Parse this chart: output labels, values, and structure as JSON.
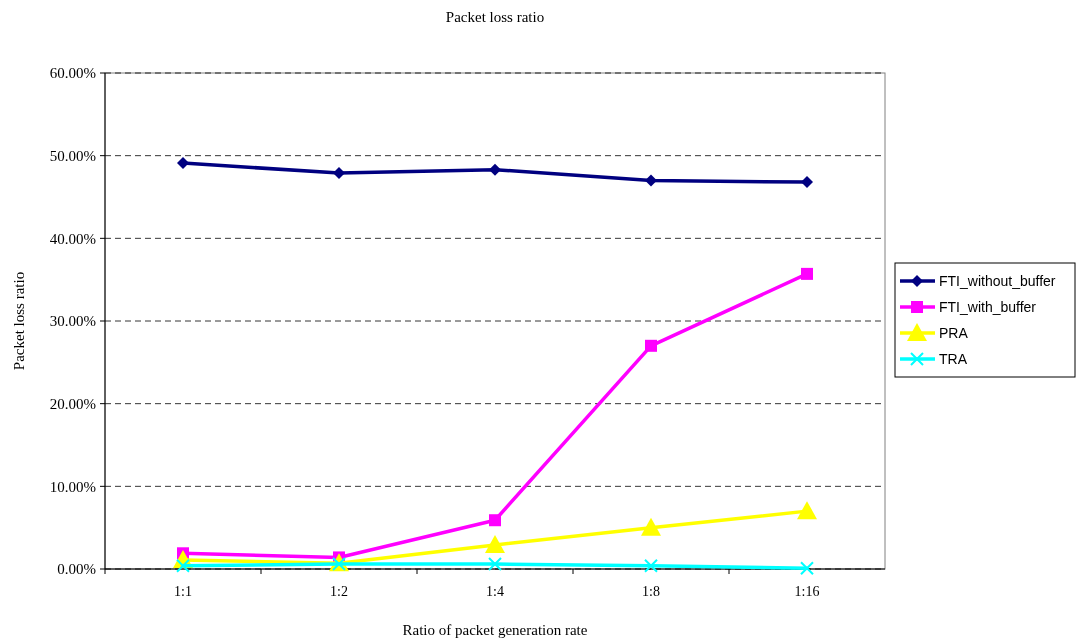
{
  "chart_data": {
    "type": "line",
    "title": "Packet loss ratio",
    "xlabel": "Ratio of packet generation rate",
    "ylabel": "Packet loss ratio",
    "categories": [
      "1:1",
      "1:2",
      "1:4",
      "1:8",
      "1:16"
    ],
    "ylim": [
      0,
      60
    ],
    "yticks": [
      {
        "value": 0,
        "label": "0.00%"
      },
      {
        "value": 10,
        "label": "10.00%"
      },
      {
        "value": 20,
        "label": "20.00%"
      },
      {
        "value": 30,
        "label": "30.00%"
      },
      {
        "value": 40,
        "label": "40.00%"
      },
      {
        "value": 50,
        "label": "50.00%"
      },
      {
        "value": 60,
        "label": "60.00%"
      }
    ],
    "grid": "y",
    "legend": "right",
    "line_style": "solid",
    "series": [
      {
        "name": "FTI_without_buffer",
        "color": "#000080",
        "marker": "diamond",
        "values": [
          49.1,
          47.9,
          48.3,
          47.0,
          46.8
        ]
      },
      {
        "name": "FTI_with_buffer",
        "color": "#ff00ff",
        "marker": "square",
        "values": [
          1.9,
          1.4,
          5.9,
          27.0,
          35.7
        ]
      },
      {
        "name": "PRA",
        "color": "#ffff00",
        "marker": "triangle",
        "values": [
          1.1,
          0.7,
          2.9,
          5.0,
          7.0
        ]
      },
      {
        "name": "TRA",
        "color": "#00ffff",
        "marker": "cross",
        "values": [
          0.4,
          0.6,
          0.6,
          0.4,
          0.1
        ]
      }
    ]
  }
}
